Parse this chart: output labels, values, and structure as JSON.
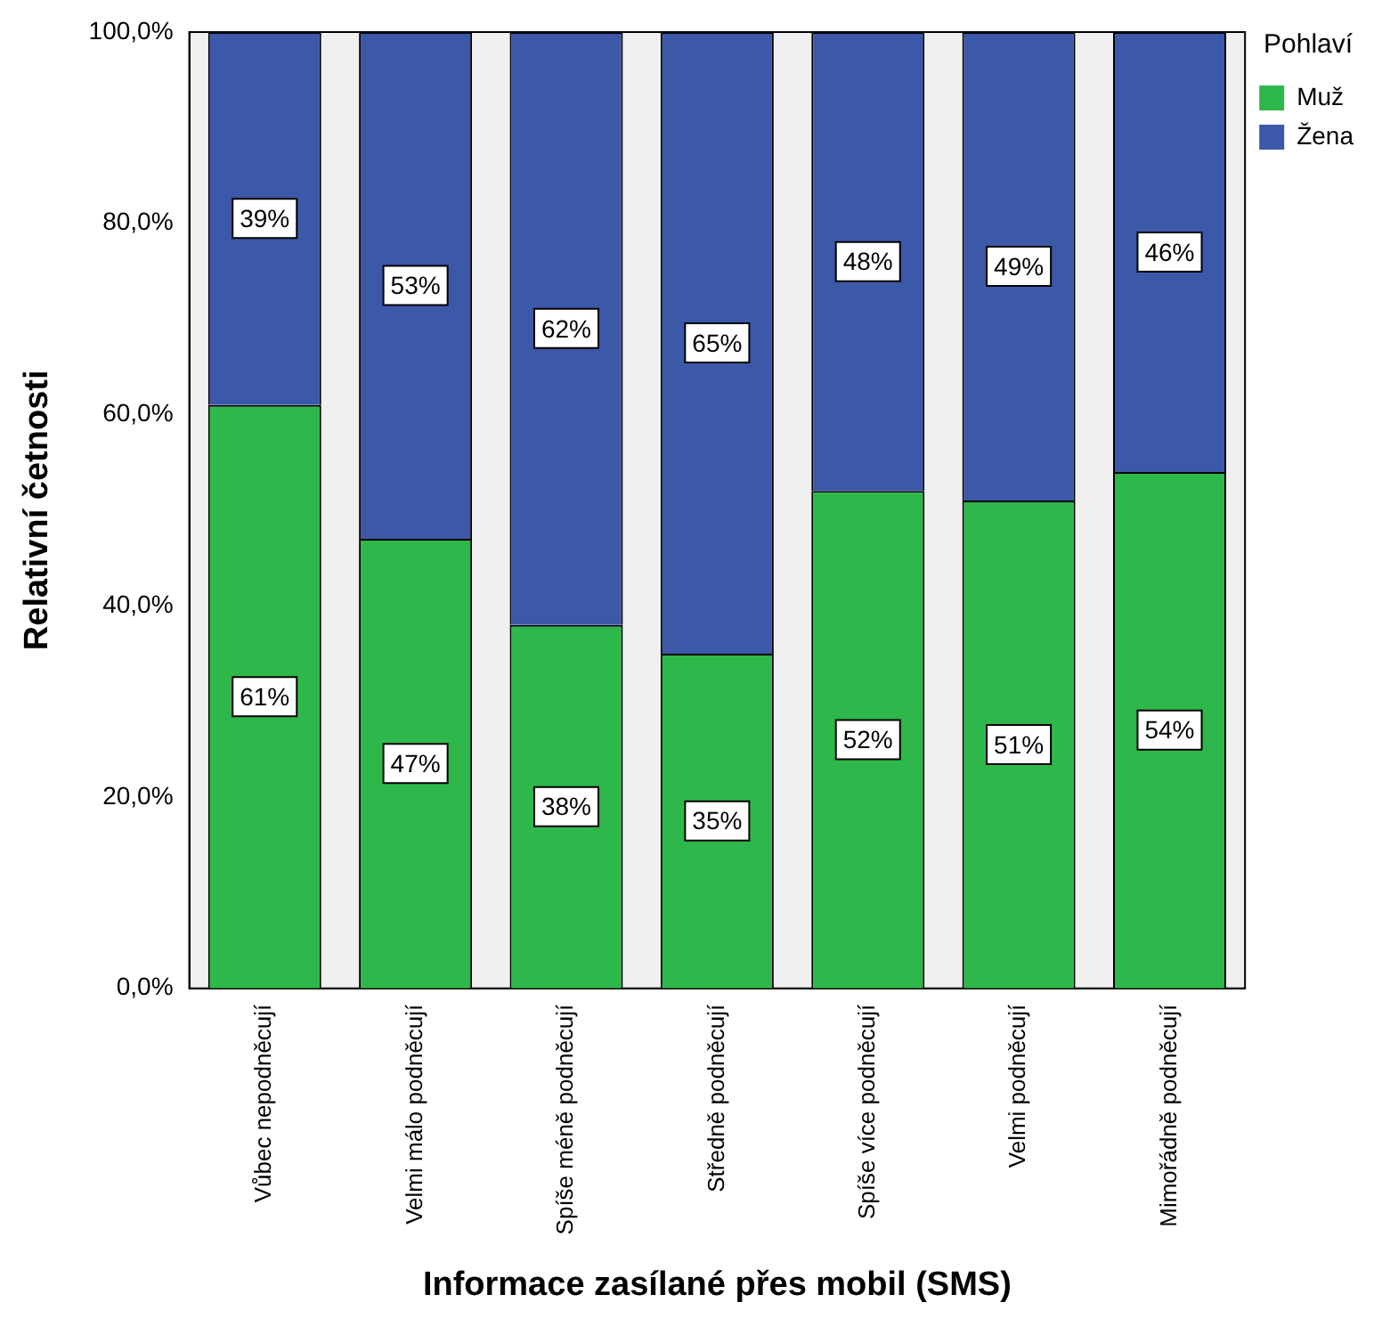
{
  "chart_data": {
    "type": "bar",
    "stacked": true,
    "xlabel": "Informace zasílané přes mobil (SMS)",
    "ylabel": "Relativní četnosti",
    "legend_title": "Pohlaví",
    "legend": "top right",
    "grid": false,
    "categories": [
      "Vůbec nepodněcují",
      "Velmi málo podněcují",
      "Spíše méně podněcují",
      "Středně podněcují",
      "Spíše více podněcují",
      "Velmi podněcují",
      "Mimořádně podněcují"
    ],
    "ylim": [
      0,
      100
    ],
    "yticks": [
      {
        "value": 0,
        "label": "0,0%"
      },
      {
        "value": 20,
        "label": "20,0%"
      },
      {
        "value": 40,
        "label": "40,0%"
      },
      {
        "value": 60,
        "label": "60,0%"
      },
      {
        "value": 80,
        "label": "80,0%"
      },
      {
        "value": 100,
        "label": "100,0%"
      }
    ],
    "series": [
      {
        "name": "Muž",
        "color": "#2eb84b",
        "values": [
          61,
          47,
          38,
          35,
          52,
          51,
          54
        ],
        "value_labels": [
          "61%",
          "47%",
          "38%",
          "35%",
          "52%",
          "51%",
          "54%"
        ]
      },
      {
        "name": "Žena",
        "color": "#3c58a8",
        "values": [
          39,
          53,
          62,
          65,
          48,
          49,
          46
        ],
        "value_labels": [
          "39%",
          "53%",
          "62%",
          "65%",
          "48%",
          "49%",
          "46%"
        ]
      }
    ]
  }
}
